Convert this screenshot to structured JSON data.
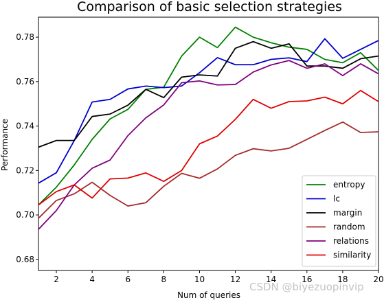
{
  "chart_data": {
    "type": "line",
    "title": "Comparison of basic selection strategies",
    "xlabel": "Num of queries",
    "ylabel": "Performance",
    "xlim": [
      1,
      20
    ],
    "ylim": [
      0.675,
      0.789
    ],
    "x_ticks": [
      2,
      4,
      6,
      8,
      10,
      12,
      14,
      16,
      18,
      20
    ],
    "y_ticks": [
      0.68,
      0.7,
      0.72,
      0.74,
      0.76,
      0.78
    ],
    "y_tick_labels": [
      "0.68",
      "0.70",
      "0.72",
      "0.74",
      "0.76",
      "0.78"
    ],
    "grid": false,
    "legend_position": "lower-right",
    "x": [
      1,
      2,
      3,
      4,
      5,
      6,
      7,
      8,
      9,
      10,
      11,
      12,
      13,
      14,
      15,
      16,
      17,
      18,
      19,
      20
    ],
    "series": [
      {
        "name": "entropy",
        "color": "#008000",
        "values": [
          0.7045,
          0.7125,
          0.7225,
          0.734,
          0.7432,
          0.7475,
          0.7565,
          0.7575,
          0.7715,
          0.78,
          0.7753,
          0.7845,
          0.78,
          0.7775,
          0.7755,
          0.7745,
          0.77,
          0.7685,
          0.773,
          0.765
        ]
      },
      {
        "name": "lc",
        "color": "#0000cc",
        "values": [
          0.7143,
          0.719,
          0.7335,
          0.7508,
          0.752,
          0.7567,
          0.758,
          0.7573,
          0.758,
          0.764,
          0.7708,
          0.7676,
          0.7676,
          0.77,
          0.7707,
          0.769,
          0.7793,
          0.7705,
          0.7745,
          0.7785
        ]
      },
      {
        "name": "margin",
        "color": "#000000",
        "values": [
          0.7305,
          0.7335,
          0.7335,
          0.7443,
          0.7454,
          0.7494,
          0.7565,
          0.7528,
          0.762,
          0.763,
          0.7625,
          0.775,
          0.778,
          0.775,
          0.777,
          0.767,
          0.767,
          0.766,
          0.7703,
          0.7715
        ]
      },
      {
        "name": "random",
        "color": "#a52a2a",
        "values": [
          0.6985,
          0.7065,
          0.7095,
          0.7147,
          0.7088,
          0.704,
          0.7055,
          0.7129,
          0.7187,
          0.7165,
          0.7207,
          0.7268,
          0.7298,
          0.7288,
          0.73,
          0.734,
          0.738,
          0.7418,
          0.7371,
          0.7374
        ]
      },
      {
        "name": "relations",
        "color": "#800080",
        "values": [
          0.6935,
          0.702,
          0.7135,
          0.721,
          0.7247,
          0.7357,
          0.7437,
          0.7495,
          0.7595,
          0.7603,
          0.7585,
          0.7587,
          0.7643,
          0.7675,
          0.7695,
          0.766,
          0.768,
          0.7627,
          0.768,
          0.7635
        ]
      },
      {
        "name": "similarity",
        "color": "#e00000",
        "values": [
          0.7045,
          0.7105,
          0.7135,
          0.7076,
          0.7162,
          0.7166,
          0.7189,
          0.7151,
          0.72,
          0.732,
          0.7355,
          0.743,
          0.752,
          0.748,
          0.751,
          0.7513,
          0.753,
          0.75,
          0.756,
          0.751
        ]
      }
    ]
  },
  "watermark": "CSDN @biyezuopinvip"
}
